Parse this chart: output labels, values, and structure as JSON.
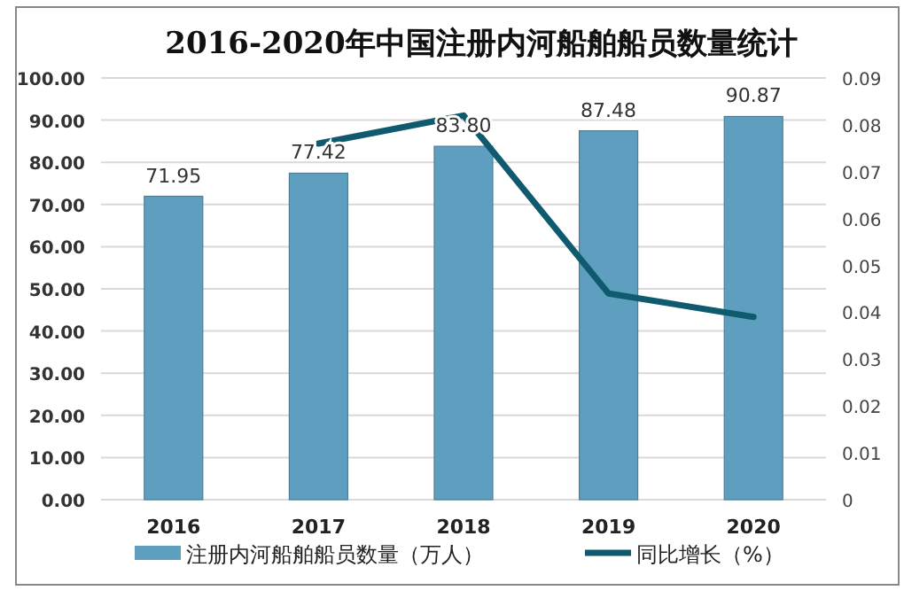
{
  "chart_data": {
    "type": "bar",
    "title": "2016-2020年中国注册内河船舶船员数量统计",
    "categories": [
      "2016",
      "2017",
      "2018",
      "2019",
      "2020"
    ],
    "series": [
      {
        "name": "注册内河船舶船员数量（万人）",
        "color": "#5e9fbf",
        "values": [
          71.95,
          77.42,
          83.8,
          87.48,
          90.87
        ],
        "value_labels": [
          "71.95",
          "77.42",
          "83.80",
          "87.48",
          "90.87"
        ]
      },
      {
        "name": "同比增长（%）",
        "type": "line",
        "axis": "y2",
        "color": "#0f5a6e",
        "values": [
          null,
          0.076,
          0.082,
          0.044,
          0.039
        ]
      }
    ],
    "ylim": [
      0,
      100
    ],
    "yticks": [
      {
        "value": 0,
        "label": "0.00"
      },
      {
        "value": 10,
        "label": "10.00"
      },
      {
        "value": 20,
        "label": "20.00"
      },
      {
        "value": 30,
        "label": "30.00"
      },
      {
        "value": 40,
        "label": "40.00"
      },
      {
        "value": 50,
        "label": "50.00"
      },
      {
        "value": 60,
        "label": "60.00"
      },
      {
        "value": 70,
        "label": "70.00"
      },
      {
        "value": 80,
        "label": "80.00"
      },
      {
        "value": 90,
        "label": "90.00"
      },
      {
        "value": 100,
        "label": "100.00"
      }
    ],
    "y2lim": [
      0,
      0.09
    ],
    "y2ticks": [
      0,
      0.01,
      0.02,
      0.03,
      0.04,
      0.05,
      0.06,
      0.07,
      0.08,
      0.09
    ],
    "grid": "y",
    "legend": "bottom"
  }
}
